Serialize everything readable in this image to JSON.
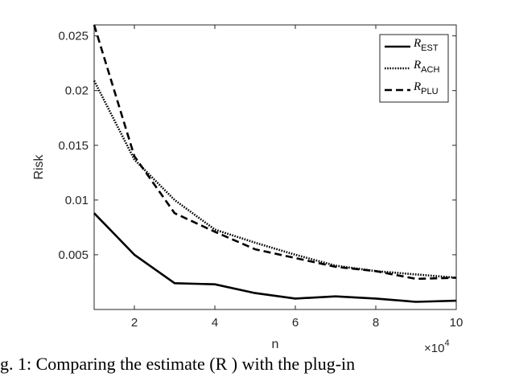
{
  "chart_data": {
    "type": "line",
    "x": [
      1,
      2,
      3,
      4,
      5,
      6,
      7,
      8,
      9,
      10
    ],
    "x_scale_label": "×10",
    "x_scale_exp": "4",
    "xlabel": "n",
    "ylabel": "Risk",
    "xlim": [
      1,
      10
    ],
    "ylim": [
      0,
      0.026
    ],
    "xticks": [
      2,
      4,
      6,
      8,
      10
    ],
    "xtick_labels": [
      "2",
      "4",
      "6",
      "8",
      "10"
    ],
    "yticks": [
      0.005,
      0.01,
      0.015,
      0.02,
      0.025
    ],
    "ytick_labels": [
      "0.005",
      "0.01",
      "0.015",
      "0.02",
      "0.025"
    ],
    "grid": false,
    "legend_position": "top-right",
    "series": [
      {
        "name": "R",
        "sub": "EST",
        "style": "solid",
        "values": [
          0.0088,
          0.005,
          0.0024,
          0.0023,
          0.0015,
          0.001,
          0.0012,
          0.001,
          0.0007,
          0.0008
        ]
      },
      {
        "name": "R",
        "sub": "ACH",
        "style": "dotted",
        "values": [
          0.0209,
          0.0137,
          0.01,
          0.0073,
          0.0061,
          0.005,
          0.004,
          0.0035,
          0.0032,
          0.0029
        ]
      },
      {
        "name": "R",
        "sub": "PLU",
        "style": "dashed",
        "values": [
          0.026,
          0.014,
          0.0088,
          0.0071,
          0.0055,
          0.0047,
          0.0039,
          0.0035,
          0.0028,
          0.0029
        ]
      }
    ]
  },
  "caption": {
    "text": "g.  1: Comparing  the  estimate  (R    ) with  the  plug-in"
  }
}
